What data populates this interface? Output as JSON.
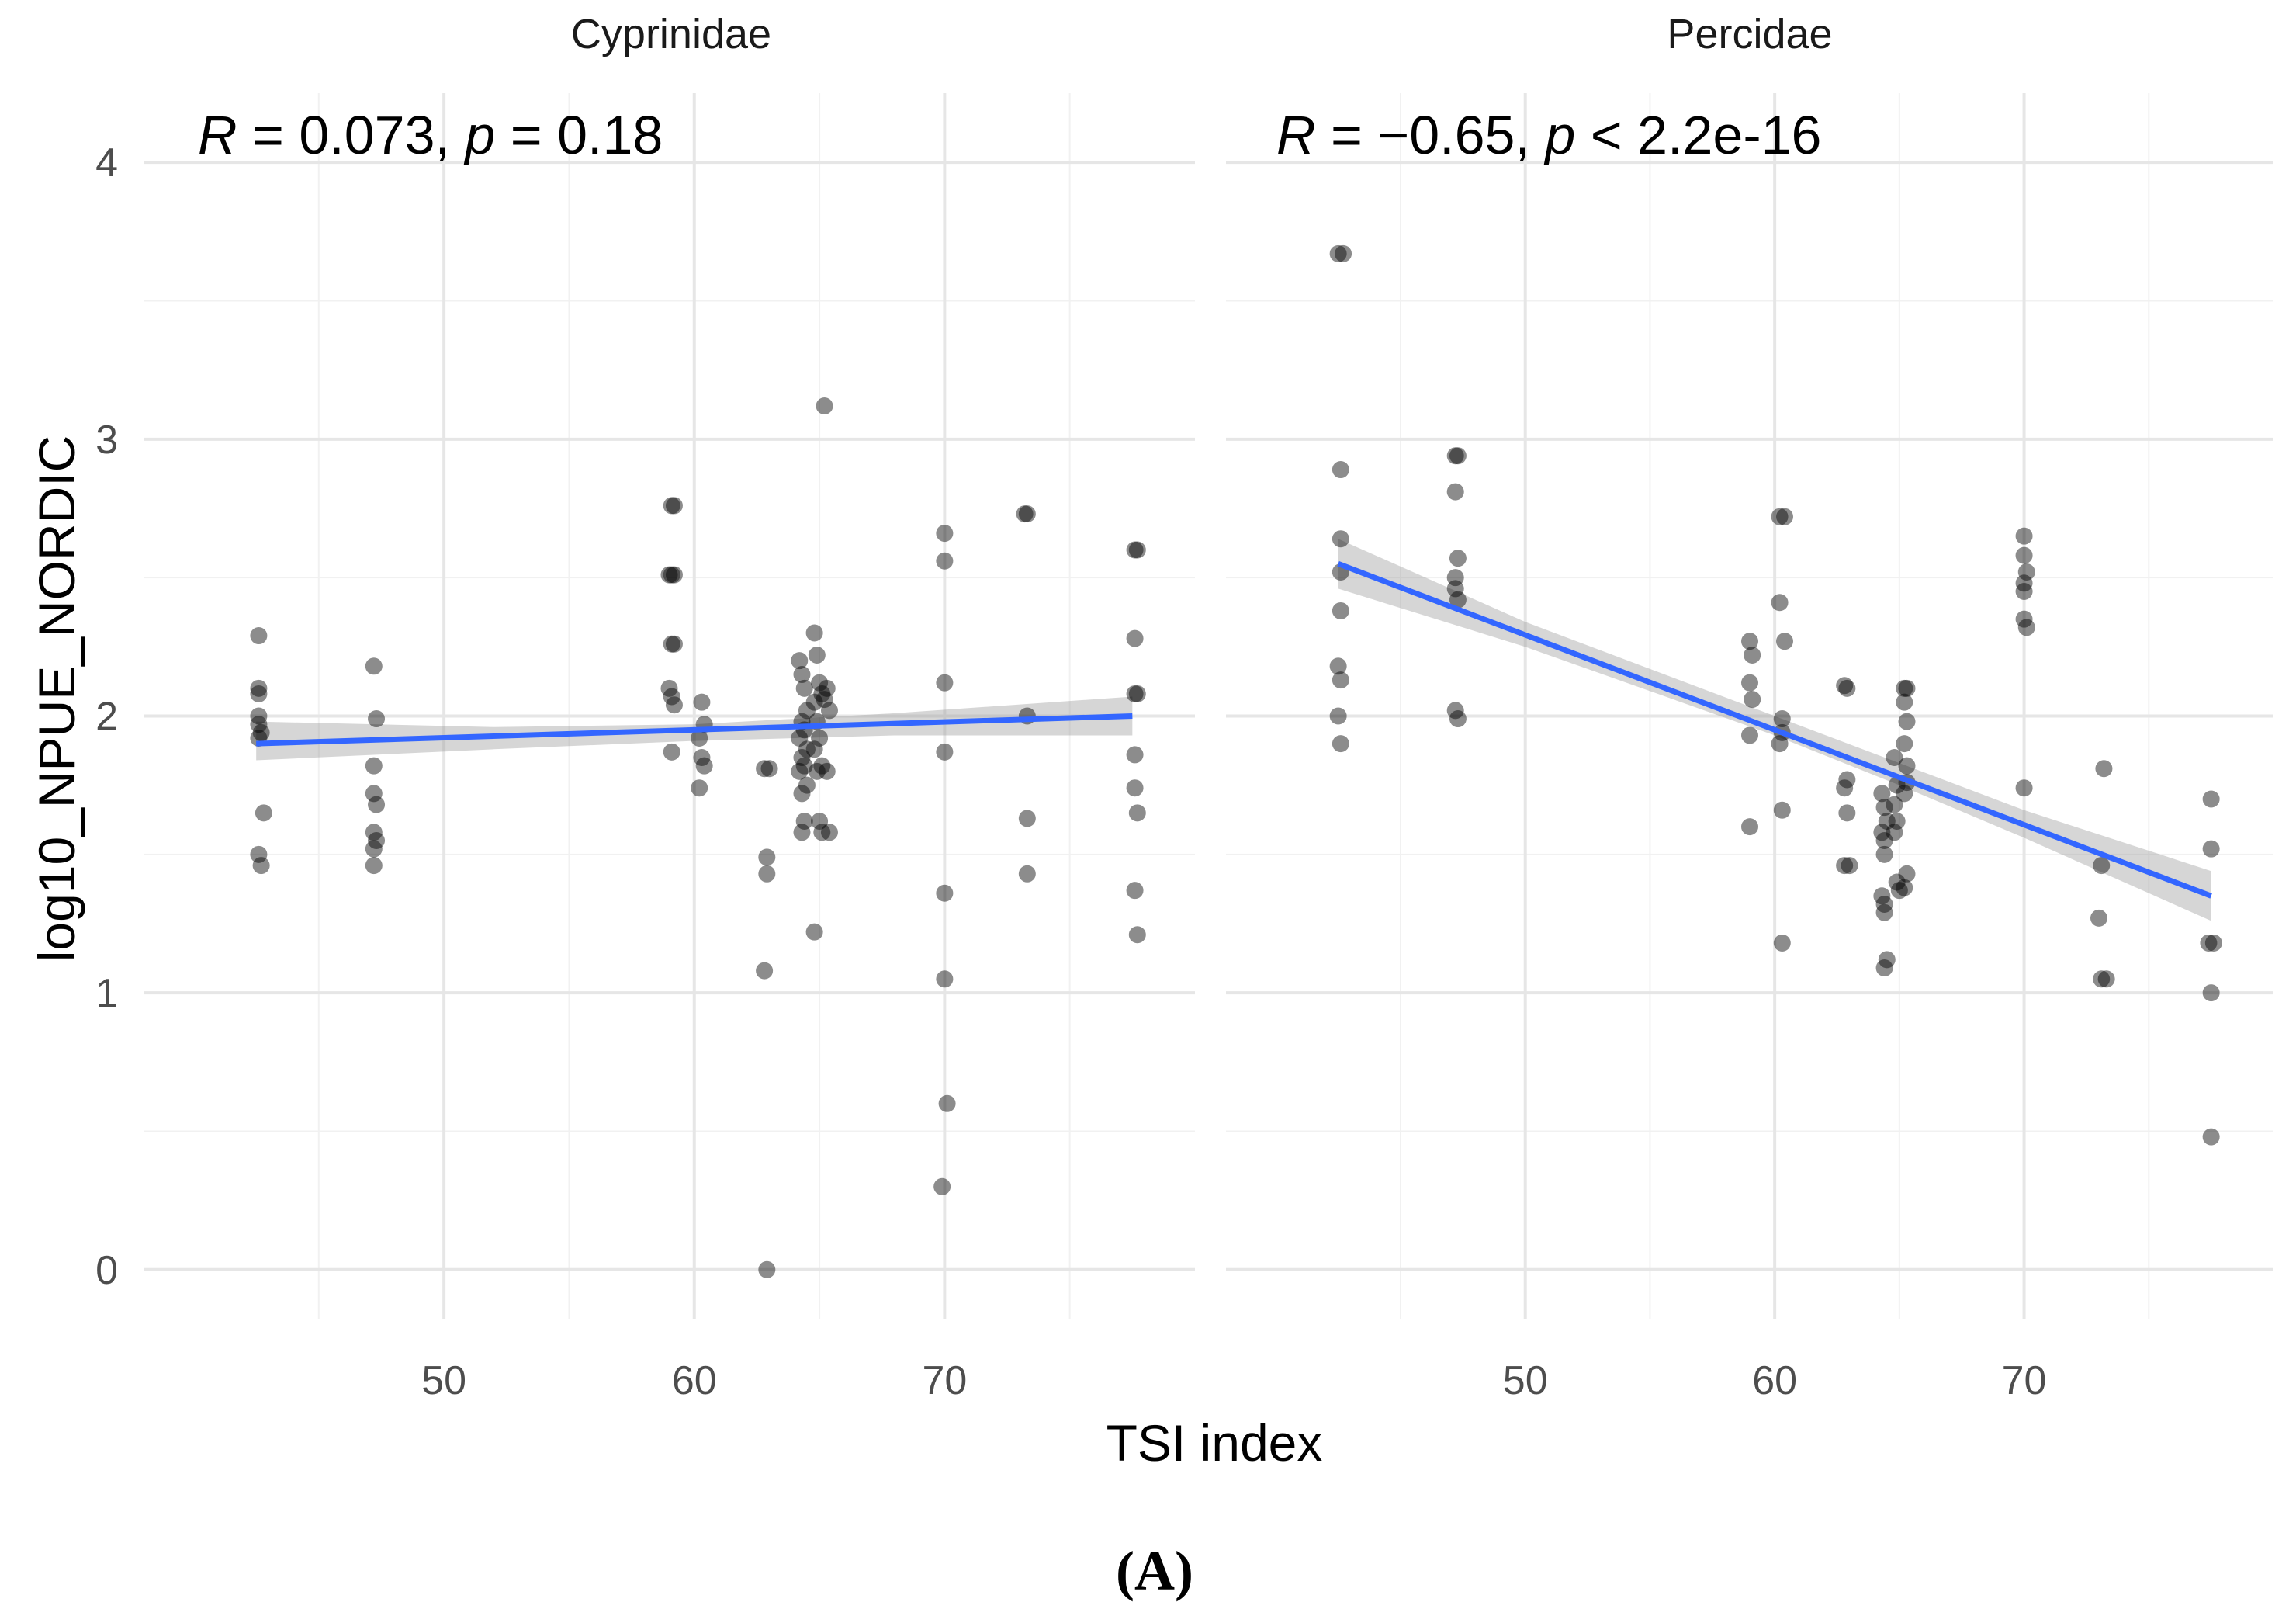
{
  "chart_data": {
    "type": "scatter",
    "x_label": "TSI index",
    "y_label": "log10_NPUE_NORDIC",
    "x_range": [
      38,
      80
    ],
    "y_range": [
      -0.18,
      4.25
    ],
    "x_ticks": [
      50,
      60,
      70
    ],
    "x_tick_labels": [
      "50",
      "60",
      "70"
    ],
    "y_ticks": [
      0,
      1,
      2,
      3,
      4
    ],
    "y_tick_labels": [
      "0",
      "1",
      "2",
      "3",
      "4"
    ],
    "figure_label": "(A)",
    "panels": [
      {
        "name": "Cyprinidae",
        "stat_R": "R",
        "stat_eq1": " = 0.073, ",
        "stat_p": "p",
        "stat_eq2": " = 0.18",
        "fit": {
          "x0": 42.5,
          "y0": 1.9,
          "x1": 77.5,
          "y1": 2.0
        },
        "band": [
          {
            "x": 42.5,
            "lo": 1.84,
            "hi": 1.98
          },
          {
            "x": 52,
            "lo": 1.88,
            "hi": 1.96
          },
          {
            "x": 60,
            "lo": 1.91,
            "hi": 1.97
          },
          {
            "x": 68,
            "lo": 1.93,
            "hi": 2.01
          },
          {
            "x": 77.5,
            "lo": 1.93,
            "hi": 2.07
          }
        ],
        "points": [
          [
            42.6,
            2.29
          ],
          [
            42.6,
            2.1
          ],
          [
            42.6,
            2.08
          ],
          [
            42.6,
            2.0
          ],
          [
            42.6,
            1.97
          ],
          [
            42.7,
            1.94
          ],
          [
            42.6,
            1.92
          ],
          [
            42.8,
            1.65
          ],
          [
            42.6,
            1.5
          ],
          [
            42.7,
            1.46
          ],
          [
            47.2,
            2.18
          ],
          [
            47.3,
            1.99
          ],
          [
            47.2,
            1.82
          ],
          [
            47.2,
            1.72
          ],
          [
            47.3,
            1.68
          ],
          [
            47.2,
            1.58
          ],
          [
            47.3,
            1.55
          ],
          [
            47.2,
            1.52
          ],
          [
            47.2,
            1.46
          ],
          [
            59.1,
            2.76
          ],
          [
            59.2,
            2.76
          ],
          [
            59.0,
            2.51
          ],
          [
            59.1,
            2.51
          ],
          [
            59.2,
            2.51
          ],
          [
            59.1,
            2.26
          ],
          [
            59.2,
            2.26
          ],
          [
            59.0,
            2.1
          ],
          [
            59.1,
            2.07
          ],
          [
            59.2,
            2.04
          ],
          [
            59.1,
            1.87
          ],
          [
            60.3,
            2.05
          ],
          [
            60.4,
            1.97
          ],
          [
            60.2,
            1.92
          ],
          [
            60.3,
            1.85
          ],
          [
            60.4,
            1.82
          ],
          [
            60.2,
            1.74
          ],
          [
            62.8,
            1.81
          ],
          [
            63.0,
            1.81
          ],
          [
            62.9,
            1.49
          ],
          [
            62.9,
            1.43
          ],
          [
            62.8,
            1.08
          ],
          [
            62.9,
            0.0
          ],
          [
            64.2,
            2.2
          ],
          [
            64.3,
            2.15
          ],
          [
            64.4,
            2.1
          ],
          [
            64.5,
            2.02
          ],
          [
            64.3,
            1.98
          ],
          [
            64.4,
            1.95
          ],
          [
            64.2,
            1.92
          ],
          [
            64.5,
            1.88
          ],
          [
            64.3,
            1.85
          ],
          [
            64.4,
            1.82
          ],
          [
            64.2,
            1.8
          ],
          [
            64.5,
            1.75
          ],
          [
            64.3,
            1.72
          ],
          [
            64.4,
            1.62
          ],
          [
            64.3,
            1.58
          ],
          [
            64.8,
            2.3
          ],
          [
            64.9,
            2.22
          ],
          [
            65.0,
            2.12
          ],
          [
            64.8,
            2.05
          ],
          [
            65.1,
            2.08
          ],
          [
            64.9,
            1.98
          ],
          [
            65.0,
            1.92
          ],
          [
            64.8,
            1.88
          ],
          [
            65.1,
            1.82
          ],
          [
            64.9,
            1.8
          ],
          [
            65.0,
            1.62
          ],
          [
            65.1,
            1.58
          ],
          [
            64.8,
            1.22
          ],
          [
            65.2,
            3.12
          ],
          [
            65.3,
            2.1
          ],
          [
            65.2,
            2.06
          ],
          [
            65.4,
            2.02
          ],
          [
            65.3,
            1.8
          ],
          [
            65.4,
            1.58
          ],
          [
            70.0,
            2.66
          ],
          [
            70.0,
            2.56
          ],
          [
            70.0,
            2.12
          ],
          [
            70.0,
            1.87
          ],
          [
            70.0,
            1.36
          ],
          [
            70.0,
            1.05
          ],
          [
            70.1,
            0.6
          ],
          [
            69.9,
            0.3
          ],
          [
            73.2,
            2.73
          ],
          [
            73.3,
            2.73
          ],
          [
            73.3,
            2.0
          ],
          [
            73.3,
            1.63
          ],
          [
            73.3,
            1.43
          ],
          [
            77.6,
            2.6
          ],
          [
            77.7,
            2.6
          ],
          [
            77.6,
            2.28
          ],
          [
            77.6,
            2.08
          ],
          [
            77.7,
            2.08
          ],
          [
            77.6,
            1.86
          ],
          [
            77.6,
            1.74
          ],
          [
            77.7,
            1.65
          ],
          [
            77.6,
            1.37
          ],
          [
            77.7,
            1.21
          ]
        ]
      },
      {
        "name": "Percidae",
        "stat_R": "R",
        "stat_eq1": " = −0.65, ",
        "stat_p": "p",
        "stat_eq2": " < 2.2e-16",
        "fit": {
          "x0": 42.5,
          "y0": 2.55,
          "x1": 77.5,
          "y1": 1.35
        },
        "band": [
          {
            "x": 42.5,
            "lo": 2.46,
            "hi": 2.64
          },
          {
            "x": 50,
            "lo": 2.25,
            "hi": 2.34
          },
          {
            "x": 60,
            "lo": 1.93,
            "hi": 2.0
          },
          {
            "x": 65,
            "lo": 1.75,
            "hi": 1.83
          },
          {
            "x": 70,
            "lo": 1.56,
            "hi": 1.66
          },
          {
            "x": 77.5,
            "lo": 1.26,
            "hi": 1.44
          }
        ],
        "points": [
          [
            42.5,
            3.67
          ],
          [
            42.7,
            3.67
          ],
          [
            42.6,
            2.89
          ],
          [
            42.6,
            2.64
          ],
          [
            42.6,
            2.52
          ],
          [
            42.6,
            2.38
          ],
          [
            42.5,
            2.18
          ],
          [
            42.6,
            2.13
          ],
          [
            42.5,
            2.0
          ],
          [
            42.6,
            1.9
          ],
          [
            47.2,
            2.94
          ],
          [
            47.3,
            2.94
          ],
          [
            47.2,
            2.81
          ],
          [
            47.3,
            2.57
          ],
          [
            47.2,
            2.5
          ],
          [
            47.2,
            2.46
          ],
          [
            47.3,
            2.42
          ],
          [
            47.2,
            2.02
          ],
          [
            47.3,
            1.99
          ],
          [
            59.0,
            2.27
          ],
          [
            59.1,
            2.22
          ],
          [
            59.0,
            2.12
          ],
          [
            59.1,
            2.06
          ],
          [
            59.0,
            1.93
          ],
          [
            59.0,
            1.6
          ],
          [
            60.2,
            2.72
          ],
          [
            60.4,
            2.72
          ],
          [
            60.2,
            2.41
          ],
          [
            60.4,
            2.27
          ],
          [
            60.3,
            1.99
          ],
          [
            60.3,
            1.94
          ],
          [
            60.2,
            1.9
          ],
          [
            60.3,
            1.66
          ],
          [
            60.3,
            1.18
          ],
          [
            62.8,
            2.11
          ],
          [
            62.9,
            2.1
          ],
          [
            62.9,
            1.77
          ],
          [
            62.8,
            1.74
          ],
          [
            62.9,
            1.65
          ],
          [
            62.8,
            1.46
          ],
          [
            63.0,
            1.46
          ],
          [
            64.3,
            1.72
          ],
          [
            64.4,
            1.67
          ],
          [
            64.5,
            1.62
          ],
          [
            64.3,
            1.58
          ],
          [
            64.4,
            1.55
          ],
          [
            64.4,
            1.5
          ],
          [
            64.3,
            1.35
          ],
          [
            64.4,
            1.32
          ],
          [
            64.4,
            1.29
          ],
          [
            64.5,
            1.12
          ],
          [
            64.4,
            1.09
          ],
          [
            64.8,
            1.85
          ],
          [
            64.9,
            1.75
          ],
          [
            64.8,
            1.68
          ],
          [
            64.9,
            1.62
          ],
          [
            64.8,
            1.58
          ],
          [
            64.9,
            1.4
          ],
          [
            65.0,
            1.37
          ],
          [
            65.2,
            2.1
          ],
          [
            65.3,
            2.1
          ],
          [
            65.2,
            2.05
          ],
          [
            65.3,
            1.98
          ],
          [
            65.2,
            1.9
          ],
          [
            65.3,
            1.82
          ],
          [
            65.3,
            1.76
          ],
          [
            65.2,
            1.72
          ],
          [
            65.3,
            1.43
          ],
          [
            65.2,
            1.38
          ],
          [
            70.0,
            2.65
          ],
          [
            70.0,
            2.58
          ],
          [
            70.1,
            2.52
          ],
          [
            70.0,
            2.48
          ],
          [
            70.0,
            2.45
          ],
          [
            70.0,
            2.35
          ],
          [
            70.1,
            2.32
          ],
          [
            70.0,
            1.74
          ],
          [
            73.2,
            1.81
          ],
          [
            73.1,
            1.46
          ],
          [
            73.0,
            1.27
          ],
          [
            73.1,
            1.05
          ],
          [
            73.3,
            1.05
          ],
          [
            77.5,
            1.7
          ],
          [
            77.5,
            1.52
          ],
          [
            77.4,
            1.18
          ],
          [
            77.6,
            1.18
          ],
          [
            77.5,
            1.0
          ],
          [
            77.5,
            0.48
          ]
        ]
      }
    ]
  }
}
